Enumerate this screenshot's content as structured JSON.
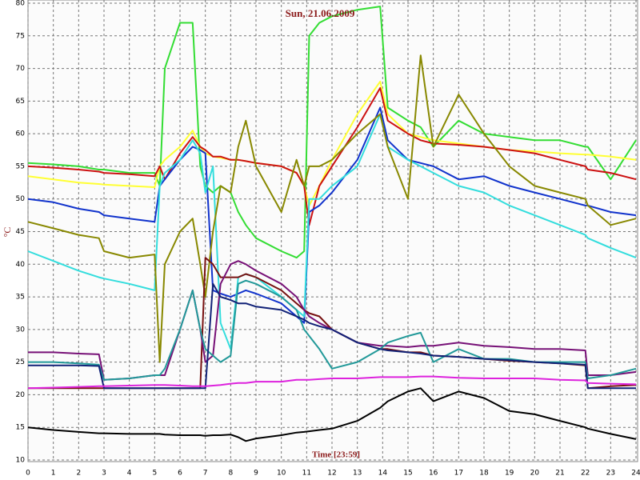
{
  "chart_data": {
    "type": "line",
    "title": "Sun, 21.06.2009",
    "x_label": "Time [23:59]",
    "y_label": "°C",
    "x": [
      0,
      1,
      2,
      2.8,
      3,
      4,
      5,
      5.2,
      5.4,
      6,
      6.5,
      6.8,
      7,
      7.3,
      7.6,
      8,
      8.3,
      8.6,
      9,
      10,
      10.6,
      10.9,
      11.1,
      11.5,
      12,
      13,
      13.9,
      14.2,
      15,
      15.5,
      16,
      17,
      18,
      19,
      20,
      21,
      22,
      22.1,
      23,
      24
    ],
    "xlim": [
      0,
      24
    ],
    "xticks": [
      0,
      1,
      2,
      3,
      4,
      5,
      6,
      7,
      8,
      9,
      10,
      11,
      12,
      13,
      14,
      15,
      16,
      17,
      18,
      19,
      20,
      21,
      22,
      23,
      24
    ],
    "ylim": [
      10,
      80
    ],
    "yticks": [
      10,
      15,
      20,
      25,
      30,
      35,
      40,
      45,
      50,
      55,
      60,
      65,
      70,
      75,
      80
    ],
    "grid": true,
    "series": [
      {
        "color": "#33dd33",
        "values": [
          55.5,
          55.3,
          55,
          54.5,
          54.5,
          54,
          54,
          52,
          70,
          77,
          77,
          55,
          52,
          51,
          52,
          51,
          48,
          46,
          44,
          42,
          41,
          42,
          75,
          77,
          78,
          79,
          79.5,
          64,
          62,
          61,
          58,
          62,
          60,
          59.5,
          59,
          59,
          58,
          58,
          53,
          59
        ]
      },
      {
        "color": "#ffff33",
        "values": [
          53.5,
          53,
          52.5,
          52.3,
          52.2,
          52,
          51.8,
          55,
          56,
          58,
          60.5,
          58,
          57,
          56.5,
          56.3,
          56,
          56,
          55.8,
          55.5,
          55,
          54,
          52,
          49,
          52,
          56,
          63,
          68,
          63,
          60,
          59.5,
          59,
          58.5,
          58,
          57.5,
          57.3,
          57,
          56.8,
          56.8,
          56.5,
          56
        ]
      },
      {
        "color": "#cc1111",
        "values": [
          55,
          54.8,
          54.5,
          54.2,
          54,
          53.8,
          53.5,
          55,
          53,
          57,
          59.5,
          58,
          57.5,
          56.5,
          56.5,
          56,
          56,
          55.8,
          55.5,
          55,
          54,
          52,
          46,
          52,
          55,
          61,
          67,
          62,
          60,
          59,
          58.5,
          58.3,
          58,
          57.5,
          57,
          56,
          55,
          54.5,
          54,
          53
        ]
      },
      {
        "color": "#1133cc",
        "values": [
          50,
          49.5,
          48.5,
          48,
          47.5,
          47,
          46.5,
          52,
          53,
          56,
          58,
          57.5,
          57,
          36,
          35.5,
          35,
          35.5,
          36,
          35.5,
          34,
          32,
          31,
          48,
          49,
          51,
          56,
          64,
          59,
          56,
          55.5,
          55,
          53,
          53.5,
          52,
          51,
          50,
          49,
          49,
          48,
          47.5
        ]
      },
      {
        "color": "#33dddd",
        "values": [
          42,
          40.5,
          39,
          38,
          37.8,
          37,
          36,
          52,
          54,
          56,
          59,
          57,
          51,
          55,
          31,
          27,
          38,
          38.5,
          38,
          35,
          33,
          32,
          50,
          50,
          52,
          55,
          63,
          58,
          56,
          55,
          54,
          52,
          51,
          49,
          47.5,
          46,
          44.5,
          44,
          42.5,
          41
        ]
      },
      {
        "color": "#888800",
        "values": [
          46.5,
          45.5,
          44.5,
          44,
          42,
          41,
          41.5,
          25,
          40,
          45,
          47,
          40,
          35,
          45,
          52,
          51,
          58,
          62,
          55,
          48,
          56,
          52,
          55,
          55,
          56,
          60,
          63,
          58,
          50,
          72,
          58,
          66,
          60,
          55,
          52,
          51,
          50,
          49,
          46,
          47
        ]
      },
      {
        "color": "#771111",
        "values": [
          21,
          21,
          21,
          21,
          21,
          21,
          21,
          21,
          21,
          21,
          21,
          21,
          41,
          40,
          38,
          38,
          38,
          38.5,
          38,
          36,
          34,
          33,
          32.5,
          32,
          30,
          28,
          27,
          27,
          26.5,
          26.5,
          26,
          25.8,
          25.5,
          25.2,
          25,
          24.8,
          24.5,
          21,
          21.3,
          21.5
        ]
      },
      {
        "color": "#771177",
        "values": [
          26.5,
          26.5,
          26.3,
          26.2,
          22.3,
          22.5,
          23,
          23,
          23,
          30,
          36,
          30,
          25,
          26,
          37,
          40,
          40.5,
          40,
          39,
          37,
          35,
          33,
          32,
          31,
          30,
          28,
          27.5,
          27.5,
          27.3,
          27.5,
          27.5,
          28,
          27.5,
          27.3,
          27,
          27,
          26.8,
          23,
          23,
          23.5
        ]
      },
      {
        "color": "#229999",
        "values": [
          25,
          25,
          24.8,
          24.6,
          22.3,
          22.5,
          23,
          23,
          24,
          30,
          36,
          30,
          27,
          26,
          25,
          26,
          37,
          37.5,
          37,
          35,
          33,
          30,
          29,
          27,
          24,
          25,
          27,
          28,
          29,
          29.5,
          25,
          27,
          25.5,
          25.5,
          25,
          25,
          25,
          22.5,
          23,
          24
        ]
      },
      {
        "color": "#112277",
        "values": [
          24.5,
          24.5,
          24.5,
          24.4,
          21,
          21,
          21,
          21,
          21,
          21,
          21,
          21,
          21,
          37,
          35,
          34.5,
          34,
          34,
          33.5,
          33,
          32,
          31.5,
          31,
          30.5,
          30,
          28,
          27,
          26.8,
          26.5,
          26.3,
          26,
          25.8,
          25.5,
          25.3,
          25,
          24.8,
          24.6,
          21,
          21,
          21
        ]
      },
      {
        "color": "#dd22dd",
        "values": [
          21,
          21.1,
          21.2,
          21.3,
          21.3,
          21.4,
          21.5,
          21.5,
          21.5,
          21.4,
          21.3,
          21.3,
          21.3,
          21.4,
          21.5,
          21.7,
          21.8,
          21.8,
          22,
          22,
          22.3,
          22.3,
          22.3,
          22.4,
          22.5,
          22.5,
          22.7,
          22.7,
          22.7,
          22.8,
          22.8,
          22.6,
          22.5,
          22.5,
          22.5,
          22.3,
          22.2,
          21.8,
          21.7,
          21.6
        ]
      },
      {
        "color": "#000000",
        "values": [
          15,
          14.6,
          14.3,
          14.1,
          14.1,
          14,
          14,
          14,
          13.9,
          13.8,
          13.8,
          13.8,
          13.7,
          13.8,
          13.8,
          13.9,
          13.5,
          12.9,
          13.3,
          13.8,
          14.2,
          14.3,
          14.4,
          14.6,
          14.8,
          16,
          18,
          19,
          20.5,
          21,
          19,
          20.5,
          19.5,
          17.5,
          17,
          16,
          15,
          14.8,
          14,
          13.2
        ]
      }
    ]
  }
}
